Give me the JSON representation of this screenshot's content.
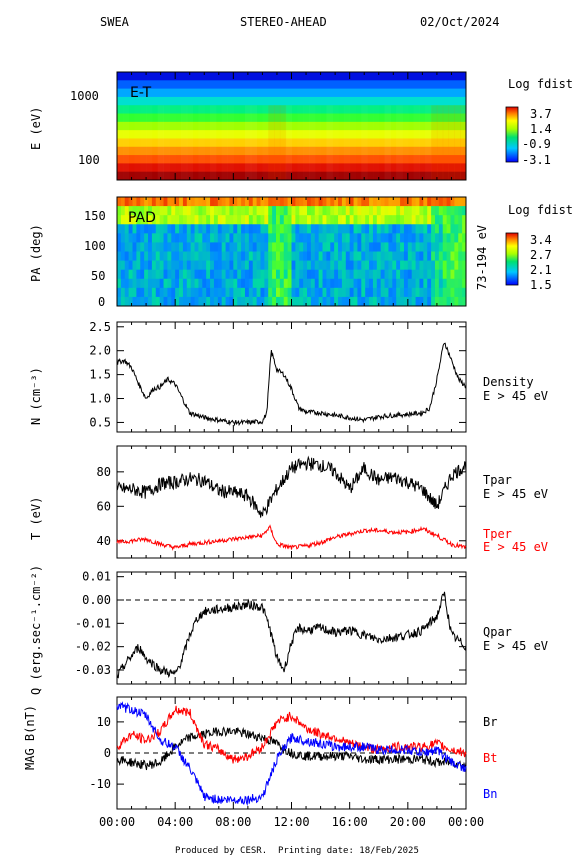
{
  "header": {
    "instrument": "SWEA",
    "spacecraft": "STEREO-AHEAD",
    "date": "02/Oct/2024"
  },
  "footer": {
    "produced_by": "Produced by CESR.",
    "printing_date": "Printing date: 18/Feb/2025"
  },
  "colors": {
    "tpar": "#000000",
    "tper": "#ff0000",
    "br": "#000000",
    "bt": "#ff0000",
    "bn": "#0000ff"
  },
  "chart_data": [
    {
      "type": "heatmap",
      "id": "et",
      "ylabel": "E (eV)",
      "yscale": "log",
      "yticks": [
        "1000",
        "100"
      ],
      "panel_label": "E-T",
      "colorbar": {
        "title": "Log fdist",
        "ticks": [
          "3.7",
          "1.4",
          "-0.9",
          "-3.1"
        ],
        "range": [
          -3.1,
          3.7
        ]
      }
    },
    {
      "type": "heatmap",
      "id": "pad",
      "ylabel": "PA (deg)",
      "yticks": [
        "150",
        "100",
        "50",
        "0"
      ],
      "ylim": [
        0,
        180
      ],
      "panel_label": "PAD",
      "energy_label": "73-194 eV",
      "colorbar": {
        "title": "Log fdist",
        "ticks": [
          "3.4",
          "2.7",
          "2.1",
          "1.5"
        ],
        "range": [
          1.5,
          3.4
        ]
      }
    },
    {
      "type": "line",
      "id": "density",
      "ylabel": "N (cm⁻³)",
      "ylim": [
        0.3,
        2.6
      ],
      "yticks": [
        "2.5",
        "2.0",
        "1.5",
        "1.0",
        "0.5"
      ],
      "series_labels": [
        "Density",
        "E > 45 eV"
      ],
      "x": [
        0,
        0.5,
        1,
        1.5,
        2,
        2.5,
        3,
        3.5,
        4,
        4.5,
        5,
        5.5,
        6,
        7,
        8,
        9,
        10,
        10.3,
        10.6,
        11,
        11.5,
        12,
        12.5,
        13,
        14,
        15,
        16,
        17,
        18,
        19,
        20,
        21,
        21.5,
        22,
        22.5,
        23,
        23.5,
        24
      ],
      "values": [
        1.75,
        1.8,
        1.65,
        1.3,
        1.0,
        1.2,
        1.25,
        1.4,
        1.3,
        1.0,
        0.7,
        0.65,
        0.6,
        0.55,
        0.5,
        0.5,
        0.52,
        0.7,
        2.0,
        1.6,
        1.5,
        1.2,
        0.8,
        0.72,
        0.7,
        0.65,
        0.6,
        0.55,
        0.62,
        0.65,
        0.67,
        0.7,
        0.8,
        1.4,
        2.2,
        1.8,
        1.4,
        1.25
      ]
    },
    {
      "type": "line",
      "id": "temperature",
      "ylabel": "T (eV)",
      "ylim": [
        30,
        95
      ],
      "yticks": [
        "80",
        "60",
        "40"
      ],
      "series": [
        {
          "name": "Tpar",
          "labels": [
            "Tpar",
            "E > 45 eV"
          ],
          "x": [
            0,
            1,
            2,
            3,
            4,
            5,
            6,
            7,
            8,
            9,
            10,
            11,
            12,
            13,
            14,
            15,
            16,
            17,
            18,
            19,
            20,
            21,
            22,
            23,
            24
          ],
          "values": [
            70,
            70,
            68,
            73,
            74,
            76,
            75,
            69,
            68,
            66,
            55,
            70,
            82,
            85,
            84,
            80,
            70,
            82,
            75,
            77,
            74,
            70,
            60,
            78,
            84
          ]
        },
        {
          "name": "Tper",
          "labels": [
            "Tper",
            "E > 45 eV"
          ],
          "x": [
            0,
            1,
            2,
            3,
            4,
            5,
            6,
            7,
            8,
            9,
            10,
            10.5,
            11,
            12,
            13,
            14,
            15,
            16,
            17,
            18,
            19,
            20,
            21,
            22,
            23,
            24
          ],
          "values": [
            39,
            40,
            41,
            38,
            36,
            38,
            39,
            40,
            41,
            42,
            43,
            48,
            38,
            36,
            37,
            39,
            42,
            44,
            46,
            46,
            45,
            45,
            47,
            43,
            38,
            36
          ]
        }
      ]
    },
    {
      "type": "line",
      "id": "heatflux",
      "ylabel": "Q (erg.sec⁻¹.cm⁻²)",
      "ylim": [
        -0.036,
        0.012
      ],
      "yticks": [
        "0.01",
        "0.00",
        "-0.01",
        "-0.02",
        "-0.03"
      ],
      "reference_line": 0,
      "series_labels": [
        "Qpar",
        "E > 45 eV"
      ],
      "x": [
        0,
        0.5,
        1,
        1.5,
        2,
        3,
        4,
        4.5,
        5,
        5.5,
        6,
        7,
        8,
        9,
        10,
        10.5,
        11,
        11.5,
        12,
        12.5,
        13,
        14,
        15,
        16,
        17,
        18,
        19,
        20,
        21,
        21.5,
        22,
        22.5,
        23,
        24
      ],
      "values": [
        -0.033,
        -0.028,
        -0.024,
        -0.02,
        -0.025,
        -0.03,
        -0.032,
        -0.025,
        -0.015,
        -0.008,
        -0.005,
        -0.004,
        -0.003,
        -0.002,
        -0.003,
        -0.012,
        -0.025,
        -0.03,
        -0.018,
        -0.012,
        -0.013,
        -0.012,
        -0.014,
        -0.013,
        -0.015,
        -0.017,
        -0.016,
        -0.015,
        -0.013,
        -0.01,
        -0.007,
        0.003,
        -0.015,
        -0.02
      ]
    },
    {
      "type": "line",
      "id": "mag",
      "ylabel": "MAG B(nT)",
      "ylim": [
        -18,
        18
      ],
      "yticks": [
        "10",
        "0",
        "-10"
      ],
      "reference_line": 0,
      "xticks": [
        "00:00",
        "04:00",
        "08:00",
        "12:00",
        "16:00",
        "20:00",
        "00:00"
      ],
      "xlim": [
        0,
        24
      ],
      "series": [
        {
          "name": "Br",
          "x": [
            0,
            1,
            2,
            3,
            4,
            5,
            6,
            7,
            8,
            9,
            10,
            11,
            12,
            13,
            14,
            15,
            16,
            17,
            18,
            19,
            20,
            21,
            22,
            23,
            24
          ],
          "values": [
            -2,
            -3,
            -4,
            -3,
            2,
            5,
            6,
            7,
            7,
            6,
            5,
            3,
            0,
            -1,
            -1,
            -1,
            -1,
            -2,
            -2,
            -2,
            -2,
            -2,
            -3,
            -3,
            -4
          ]
        },
        {
          "name": "Bt",
          "x": [
            0,
            1,
            2,
            3,
            4,
            5,
            6,
            7,
            8,
            9,
            10,
            11,
            12,
            13,
            14,
            15,
            16,
            17,
            18,
            19,
            20,
            21,
            22,
            23,
            24
          ],
          "values": [
            2,
            6,
            4,
            7,
            14,
            13,
            3,
            1,
            -2,
            -1,
            2,
            10,
            12,
            8,
            6,
            5,
            3,
            2,
            1,
            2,
            2,
            2,
            3,
            1,
            0
          ]
        },
        {
          "name": "Bn",
          "x": [
            0,
            1,
            2,
            3,
            4,
            5,
            6,
            7,
            8,
            9,
            10,
            11,
            12,
            13,
            14,
            15,
            16,
            17,
            18,
            19,
            20,
            21,
            22,
            23,
            24
          ],
          "values": [
            15,
            14,
            12,
            4,
            2,
            -5,
            -14,
            -15,
            -15,
            -15,
            -14,
            -2,
            5,
            4,
            3,
            2,
            2,
            2,
            1,
            1,
            1,
            0,
            1,
            -3,
            -5
          ]
        }
      ]
    }
  ]
}
